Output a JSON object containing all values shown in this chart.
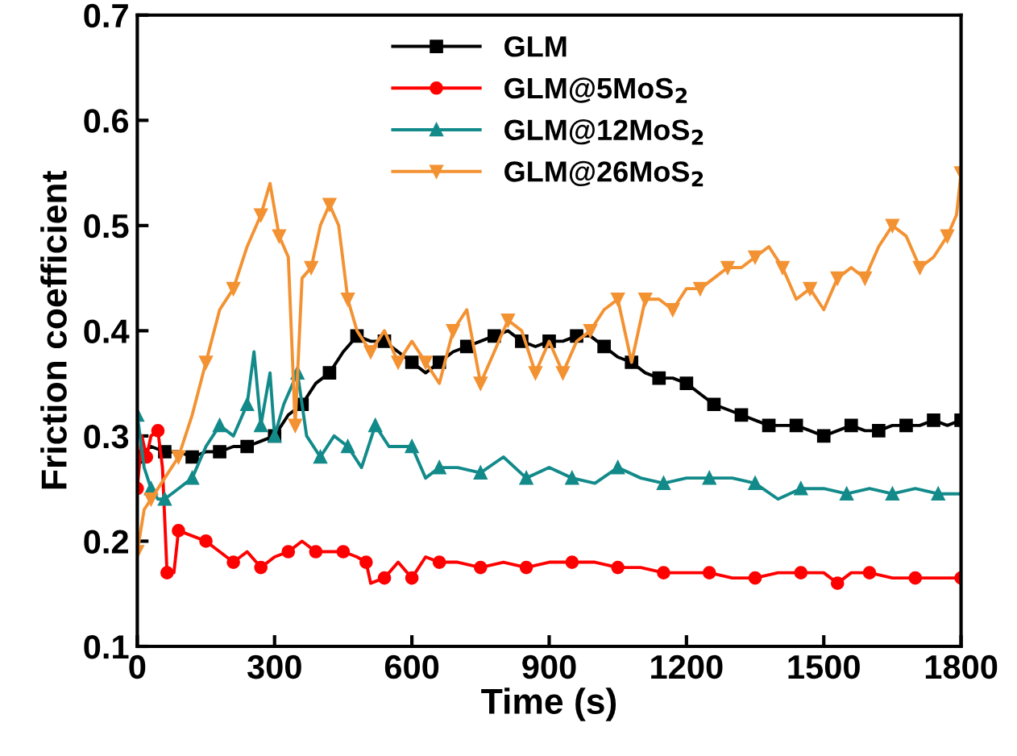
{
  "chart_data": {
    "type": "line",
    "xlabel": "Time (s)",
    "ylabel": "Friction coefficient",
    "xlim": [
      0,
      1800
    ],
    "xticks": [
      0,
      300,
      600,
      900,
      1200,
      1500,
      1800
    ],
    "ylim": [
      0.1,
      0.7
    ],
    "yticks": [
      0.1,
      0.2,
      0.3,
      0.4,
      0.5,
      0.6,
      0.7
    ],
    "grid": false,
    "legend": "top",
    "line_style": "solid",
    "series": [
      {
        "name": "GLM",
        "color": "#000000",
        "marker": "square",
        "x": [
          0,
          30,
          60,
          90,
          120,
          150,
          180,
          210,
          240,
          270,
          300,
          330,
          360,
          390,
          420,
          450,
          480,
          510,
          540,
          570,
          600,
          630,
          660,
          690,
          720,
          750,
          780,
          810,
          840,
          870,
          900,
          930,
          960,
          990,
          1020,
          1050,
          1080,
          1110,
          1140,
          1170,
          1200,
          1230,
          1260,
          1290,
          1320,
          1350,
          1380,
          1410,
          1440,
          1470,
          1500,
          1530,
          1560,
          1590,
          1620,
          1650,
          1680,
          1710,
          1740,
          1770,
          1800
        ],
        "values": [
          0.28,
          0.29,
          0.285,
          0.285,
          0.28,
          0.285,
          0.285,
          0.29,
          0.29,
          0.295,
          0.3,
          0.32,
          0.33,
          0.35,
          0.36,
          0.38,
          0.395,
          0.39,
          0.39,
          0.38,
          0.37,
          0.36,
          0.37,
          0.38,
          0.385,
          0.39,
          0.395,
          0.4,
          0.39,
          0.385,
          0.39,
          0.39,
          0.395,
          0.395,
          0.385,
          0.375,
          0.37,
          0.36,
          0.355,
          0.355,
          0.35,
          0.34,
          0.33,
          0.325,
          0.32,
          0.315,
          0.31,
          0.31,
          0.31,
          0.305,
          0.3,
          0.305,
          0.31,
          0.305,
          0.305,
          0.31,
          0.31,
          0.31,
          0.315,
          0.31,
          0.315
        ]
      },
      {
        "name": "GLM@5MoS$_{2}$",
        "color": "#ff0000",
        "marker": "circle",
        "x": [
          0,
          10,
          20,
          30,
          45,
          55,
          65,
          80,
          90,
          120,
          150,
          180,
          210,
          240,
          270,
          300,
          330,
          360,
          390,
          420,
          450,
          480,
          500,
          510,
          540,
          570,
          600,
          630,
          660,
          700,
          750,
          800,
          850,
          900,
          950,
          1000,
          1050,
          1100,
          1150,
          1200,
          1250,
          1300,
          1350,
          1400,
          1450,
          1500,
          1530,
          1560,
          1600,
          1650,
          1700,
          1750,
          1800
        ],
        "values": [
          0.25,
          0.3,
          0.28,
          0.3,
          0.305,
          0.27,
          0.17,
          0.17,
          0.21,
          0.205,
          0.2,
          0.19,
          0.18,
          0.19,
          0.175,
          0.185,
          0.19,
          0.2,
          0.19,
          0.19,
          0.19,
          0.185,
          0.18,
          0.16,
          0.165,
          0.18,
          0.165,
          0.185,
          0.18,
          0.18,
          0.175,
          0.18,
          0.175,
          0.18,
          0.18,
          0.18,
          0.175,
          0.175,
          0.17,
          0.17,
          0.17,
          0.165,
          0.165,
          0.17,
          0.17,
          0.17,
          0.16,
          0.17,
          0.17,
          0.165,
          0.165,
          0.165,
          0.165
        ]
      },
      {
        "name": "GLM@12MoS$_{2}$",
        "color": "#138a8a",
        "marker": "triangle",
        "x": [
          0,
          15,
          30,
          45,
          60,
          90,
          120,
          150,
          180,
          210,
          240,
          255,
          270,
          290,
          300,
          320,
          350,
          370,
          400,
          430,
          460,
          490,
          520,
          550,
          600,
          630,
          660,
          700,
          750,
          800,
          850,
          900,
          950,
          1000,
          1050,
          1100,
          1150,
          1200,
          1250,
          1300,
          1350,
          1400,
          1450,
          1500,
          1550,
          1600,
          1650,
          1700,
          1750,
          1800
        ],
        "values": [
          0.32,
          0.27,
          0.25,
          0.24,
          0.24,
          0.25,
          0.26,
          0.29,
          0.31,
          0.3,
          0.33,
          0.38,
          0.31,
          0.36,
          0.3,
          0.33,
          0.36,
          0.3,
          0.28,
          0.3,
          0.29,
          0.27,
          0.31,
          0.29,
          0.29,
          0.26,
          0.27,
          0.27,
          0.265,
          0.28,
          0.26,
          0.27,
          0.26,
          0.255,
          0.27,
          0.26,
          0.255,
          0.26,
          0.26,
          0.26,
          0.255,
          0.24,
          0.25,
          0.25,
          0.245,
          0.25,
          0.245,
          0.25,
          0.245,
          0.245
        ]
      },
      {
        "name": "GLM@26MoS$_{2}$",
        "color": "#f39232",
        "marker": "triangle_down",
        "x": [
          0,
          15,
          30,
          60,
          90,
          120,
          150,
          180,
          210,
          240,
          270,
          290,
          310,
          330,
          345,
          360,
          380,
          400,
          420,
          440,
          460,
          480,
          510,
          540,
          570,
          600,
          630,
          660,
          690,
          720,
          750,
          780,
          810,
          840,
          870,
          900,
          930,
          960,
          990,
          1020,
          1050,
          1080,
          1110,
          1140,
          1170,
          1200,
          1230,
          1260,
          1290,
          1320,
          1350,
          1380,
          1410,
          1440,
          1470,
          1500,
          1530,
          1560,
          1590,
          1620,
          1650,
          1680,
          1710,
          1740,
          1770,
          1790,
          1800
        ],
        "values": [
          0.19,
          0.23,
          0.24,
          0.26,
          0.28,
          0.32,
          0.37,
          0.42,
          0.44,
          0.48,
          0.51,
          0.54,
          0.49,
          0.47,
          0.31,
          0.45,
          0.46,
          0.5,
          0.52,
          0.5,
          0.43,
          0.4,
          0.38,
          0.4,
          0.37,
          0.39,
          0.37,
          0.35,
          0.4,
          0.42,
          0.35,
          0.38,
          0.41,
          0.4,
          0.36,
          0.39,
          0.36,
          0.39,
          0.4,
          0.42,
          0.43,
          0.37,
          0.43,
          0.43,
          0.42,
          0.44,
          0.44,
          0.45,
          0.46,
          0.46,
          0.47,
          0.48,
          0.46,
          0.43,
          0.44,
          0.42,
          0.45,
          0.46,
          0.45,
          0.48,
          0.5,
          0.49,
          0.46,
          0.47,
          0.49,
          0.51,
          0.55
        ]
      }
    ]
  }
}
